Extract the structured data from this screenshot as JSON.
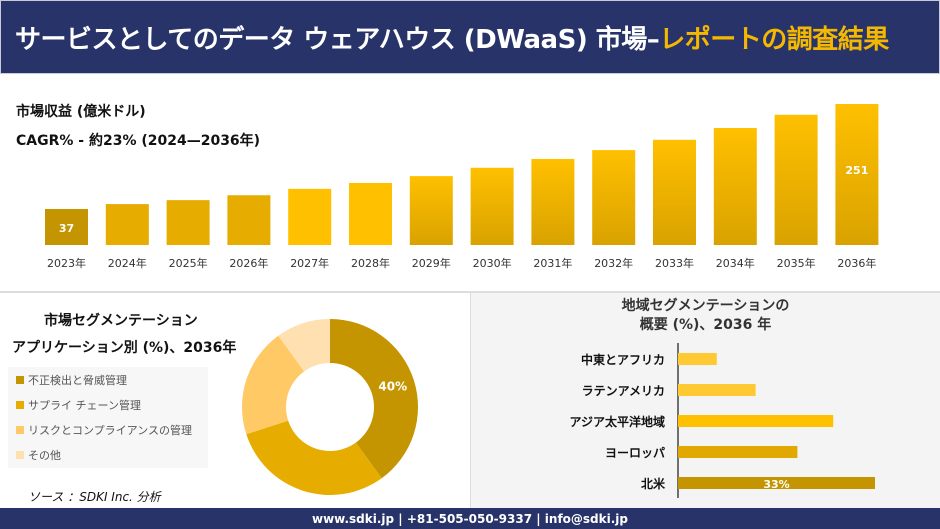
{
  "header": {
    "title_main": "サービスとしてのデータ ウェアハウス (DWaaS) 市場–",
    "title_highlight": "レポートの調査結果"
  },
  "colors": {
    "header_bg": "#283469",
    "highlight": "#f5b800",
    "dark_gold": "#c49500",
    "gold": "#e6ac00",
    "yellow": "#ffc000",
    "light": "#ffc966",
    "pale": "#ffe0b0"
  },
  "chart_data": [
    {
      "type": "bar",
      "title": "市場収益 (億米ドル)",
      "subtitle": "CAGR% - 約23% (2024—2036年)",
      "categories": [
        "2023年",
        "2024年",
        "2025年",
        "2026年",
        "2027年",
        "2028年",
        "2029年",
        "2030年",
        "2031年",
        "2032年",
        "2033年",
        "2034年",
        "2035年",
        "2036年"
      ],
      "values": [
        37,
        47,
        55,
        65,
        78,
        90,
        104,
        121,
        139,
        157,
        178,
        202,
        229,
        251
      ],
      "data_labels": {
        "0": "37",
        "13": "251"
      }
    },
    {
      "type": "pie",
      "title": "市場セグメンテーション",
      "subtitle": "アプリケーション別 (%)、2036年",
      "categories": [
        "不正検出と脅威管理",
        "サプライ チェーン管理",
        "リスクとコンプライアンスの管理",
        "その他"
      ],
      "values": [
        40,
        30,
        20,
        10
      ],
      "data_labels": {
        "0": "40%"
      },
      "legend": "left"
    },
    {
      "type": "bar",
      "orientation": "horizontal",
      "title": "地域セグメンテーションの",
      "subtitle": "概要 (%)、2036 年",
      "categories": [
        "中東とアフリカ",
        "ラテンアメリカ",
        "アジア太平洋地域",
        "ヨーロッパ",
        "北米"
      ],
      "values": [
        6.5,
        13,
        26,
        20,
        33
      ],
      "data_labels": {
        "4": "33%"
      }
    }
  ],
  "source": "ソース ：SDKI Inc. 分析",
  "footer": "www.sdki.jp | +81-505-050-9337 | info@sdki.jp"
}
